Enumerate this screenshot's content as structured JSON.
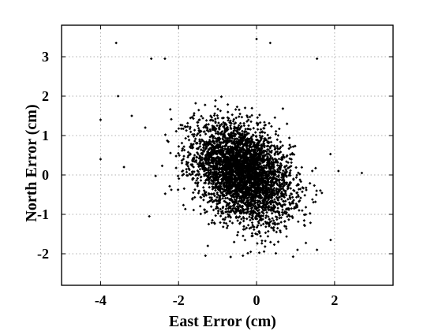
{
  "chart_data": {
    "type": "scatter",
    "title": "",
    "xlabel": "East Error (cm)",
    "ylabel": "North Error (cm)",
    "xlim": [
      -5,
      3.5
    ],
    "ylim": [
      -2.8,
      3.8
    ],
    "xticks": [
      -4,
      -2,
      0,
      2
    ],
    "yticks": [
      -2,
      -1,
      0,
      1,
      2,
      3
    ],
    "xtick_labels": [
      "-4",
      "-2",
      "0",
      "2"
    ],
    "ytick_labels": [
      "-2",
      "-1",
      "0",
      "1",
      "2",
      "3"
    ],
    "grid": true,
    "marker": "dot",
    "marker_color": "#000000",
    "distribution": {
      "center": [
        -0.35,
        0.05
      ],
      "std": [
        0.62,
        0.62
      ],
      "correlation": -0.35,
      "count": 4000
    },
    "outliers": [
      [
        -3.6,
        3.35
      ],
      [
        -4.0,
        1.4
      ],
      [
        -4.0,
        0.4
      ],
      [
        -3.55,
        2.0
      ],
      [
        -3.4,
        0.2
      ],
      [
        -2.7,
        2.95
      ],
      [
        -2.35,
        2.95
      ],
      [
        -2.75,
        -1.05
      ],
      [
        0.0,
        3.45
      ],
      [
        0.35,
        3.35
      ],
      [
        1.55,
        2.95
      ],
      [
        2.7,
        0.05
      ],
      [
        2.1,
        0.1
      ],
      [
        1.9,
        -1.65
      ],
      [
        1.55,
        -1.9
      ],
      [
        -0.35,
        -2.05
      ],
      [
        -0.15,
        -1.95
      ],
      [
        -1.25,
        -1.8
      ],
      [
        1.05,
        -1.9
      ],
      [
        -3.2,
        1.5
      ]
    ]
  }
}
